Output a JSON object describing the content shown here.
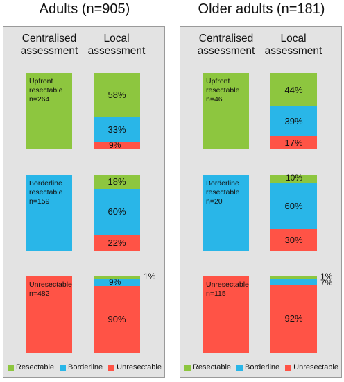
{
  "colors": {
    "resectable": "#8dc63f",
    "borderline": "#29b6e8",
    "unresectable": "#ff5346"
  },
  "chart_data": [
    {
      "type": "bar",
      "title": "Adults (n=905)",
      "column_headers": {
        "centralised": [
          "Centralised",
          "assessment"
        ],
        "local": [
          "Local",
          "assessment"
        ]
      },
      "groups": [
        {
          "label": [
            "Upfront",
            "resectable"
          ],
          "n_label": "n=264",
          "category": "resectable",
          "local": {
            "resectable": 58,
            "borderline": 33,
            "unresectable": 9
          },
          "labels": {
            "resectable": "58%",
            "borderline": "33%",
            "unresectable": "9%"
          }
        },
        {
          "label": [
            "Borderline",
            "resectable"
          ],
          "n_label": "n=159",
          "category": "borderline",
          "local": {
            "resectable": 18,
            "borderline": 60,
            "unresectable": 22
          },
          "labels": {
            "resectable": "18%",
            "borderline": "60%",
            "unresectable": "22%"
          }
        },
        {
          "label": [
            "Unresectable"
          ],
          "n_label": "n=482",
          "category": "unresectable",
          "local": {
            "resectable": 1,
            "borderline": 9,
            "unresectable": 90
          },
          "labels": {
            "resectable": "1%",
            "borderline": "9%",
            "unresectable": "90%"
          }
        }
      ],
      "legend": [
        "Resectable",
        "Borderline",
        "Unresectable"
      ]
    },
    {
      "type": "bar",
      "title": "Older adults (n=181)",
      "column_headers": {
        "centralised": [
          "Centralised",
          "assessment"
        ],
        "local": [
          "Local",
          "assessment"
        ]
      },
      "groups": [
        {
          "label": [
            "Upfront",
            "resectable"
          ],
          "n_label": "n=46",
          "category": "resectable",
          "local": {
            "resectable": 44,
            "borderline": 39,
            "unresectable": 17
          },
          "labels": {
            "resectable": "44%",
            "borderline": "39%",
            "unresectable": "17%"
          }
        },
        {
          "label": [
            "Borderline",
            "resectable"
          ],
          "n_label": "n=20",
          "category": "borderline",
          "local": {
            "resectable": 10,
            "borderline": 60,
            "unresectable": 30
          },
          "labels": {
            "resectable": "10%",
            "borderline": "60%",
            "unresectable": "30%"
          }
        },
        {
          "label": [
            "Unresectable"
          ],
          "n_label": "n=115",
          "category": "unresectable",
          "local": {
            "resectable": 1,
            "borderline": 7,
            "unresectable": 92
          },
          "labels": {
            "resectable": "1%",
            "borderline": "7%",
            "unresectable": "92%"
          }
        }
      ],
      "legend": [
        "Resectable",
        "Borderline",
        "Unresectable"
      ]
    }
  ]
}
